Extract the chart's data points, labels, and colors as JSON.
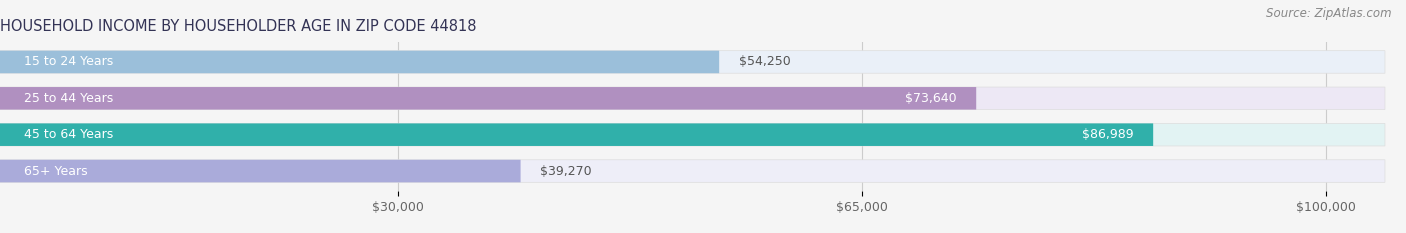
{
  "title": "HOUSEHOLD INCOME BY HOUSEHOLDER AGE IN ZIP CODE 44818",
  "source": "Source: ZipAtlas.com",
  "categories": [
    "15 to 24 Years",
    "25 to 44 Years",
    "45 to 64 Years",
    "65+ Years"
  ],
  "values": [
    54250,
    73640,
    86989,
    39270
  ],
  "bar_colors": [
    "#9bbfda",
    "#b090c0",
    "#30b0aa",
    "#aaabda"
  ],
  "bar_bg_colors": [
    "#eaf0f8",
    "#ede8f5",
    "#e2f3f3",
    "#eeeef8"
  ],
  "value_labels": [
    "$54,250",
    "$73,640",
    "$86,989",
    "$39,270"
  ],
  "value_inside": [
    false,
    true,
    true,
    false
  ],
  "xlim": [
    0,
    105000
  ],
  "xticks": [
    30000,
    65000,
    100000
  ],
  "xtick_labels": [
    "$30,000",
    "$65,000",
    "$100,000"
  ],
  "background_color": "#f5f5f5",
  "title_fontsize": 10.5,
  "source_fontsize": 8.5,
  "label_fontsize": 9,
  "value_fontsize": 9,
  "tick_fontsize": 9
}
